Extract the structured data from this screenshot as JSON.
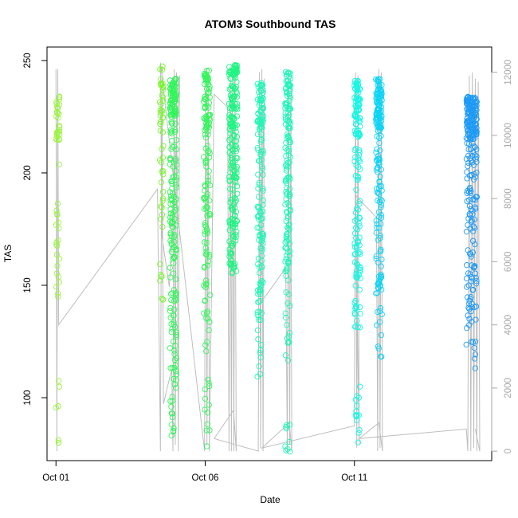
{
  "chart_data": {
    "type": "scatter",
    "title": "ATOM3 Southbound TAS",
    "xlabel": "Date",
    "ylabel": "TAS",
    "x_ticks": [
      {
        "day": 1,
        "label": "Oct 01"
      },
      {
        "day": 6,
        "label": "Oct 06"
      },
      {
        "day": 11,
        "label": "Oct 11"
      }
    ],
    "y_ticks": [
      100,
      150,
      200,
      250
    ],
    "y2_ticks": [
      0,
      2000,
      4000,
      6000,
      8000,
      10000,
      12000
    ],
    "xlim": [
      0.7,
      15.6
    ],
    "ylim": [
      72,
      256
    ],
    "y2lim": [
      -300,
      12800
    ],
    "grid": false,
    "colors": {
      "altitude_line": "#bebebe",
      "right_axis": "#a9a9a9",
      "day_colors": [
        "#9af53e",
        "#7af52f",
        "#32f55a",
        "#1ef582",
        "#22f5b7",
        "#18f5e2",
        "#0cd3f5",
        "#1e9af5"
      ]
    },
    "series": [
      {
        "color_index": 0,
        "x0": 1.0,
        "width": 0.12,
        "n": 55,
        "bands": [
          [
            214,
            235,
            0.5
          ],
          [
            140,
            205,
            0.38
          ],
          [
            78,
            118,
            0.12
          ]
        ]
      },
      {
        "color_index": 1,
        "x0": 4.48,
        "width": 0.12,
        "n": 55,
        "bands": [
          [
            218,
            248,
            0.55
          ],
          [
            175,
            215,
            0.3
          ],
          [
            140,
            160,
            0.15
          ]
        ]
      },
      {
        "color_index": 2,
        "x0": 4.82,
        "width": 0.22,
        "n": 220,
        "bands": [
          [
            225,
            242,
            0.35
          ],
          [
            150,
            225,
            0.4
          ],
          [
            100,
            150,
            0.2
          ],
          [
            83,
            100,
            0.05
          ]
        ]
      },
      {
        "color_index": 2,
        "x0": 5.95,
        "width": 0.22,
        "n": 150,
        "bands": [
          [
            220,
            247,
            0.4
          ],
          [
            160,
            220,
            0.38
          ],
          [
            120,
            160,
            0.14
          ],
          [
            77,
            120,
            0.08
          ]
        ]
      },
      {
        "color_index": 3,
        "x0": 6.8,
        "width": 0.28,
        "n": 220,
        "bands": [
          [
            220,
            248,
            0.45
          ],
          [
            155,
            220,
            0.55
          ]
        ]
      },
      {
        "color_index": 4,
        "x0": 7.75,
        "width": 0.2,
        "n": 150,
        "bands": [
          [
            220,
            240,
            0.35
          ],
          [
            130,
            220,
            0.6
          ],
          [
            100,
            130,
            0.05
          ]
        ]
      },
      {
        "color_index": 4,
        "x0": 8.68,
        "width": 0.18,
        "n": 170,
        "bands": [
          [
            215,
            245,
            0.4
          ],
          [
            155,
            215,
            0.45
          ],
          [
            105,
            155,
            0.1
          ],
          [
            75,
            90,
            0.05
          ]
        ]
      },
      {
        "color_index": 5,
        "x0": 11.0,
        "width": 0.2,
        "n": 170,
        "bands": [
          [
            215,
            241,
            0.45
          ],
          [
            130,
            215,
            0.47
          ],
          [
            80,
            105,
            0.08
          ]
        ]
      },
      {
        "color_index": 6,
        "x0": 11.72,
        "width": 0.2,
        "n": 180,
        "bands": [
          [
            218,
            242,
            0.5
          ],
          [
            145,
            218,
            0.44
          ],
          [
            118,
            140,
            0.06
          ]
        ]
      },
      {
        "color_index": 7,
        "x0": 14.75,
        "width": 0.35,
        "n": 260,
        "bands": [
          [
            215,
            234,
            0.55
          ],
          [
            130,
            215,
            0.42
          ],
          [
            100,
            130,
            0.03
          ]
        ]
      }
    ],
    "altitude_trace": [
      [
        1.0,
        12100
      ],
      [
        1.03,
        0
      ],
      [
        1.06,
        12100
      ],
      [
        1.09,
        4000
      ],
      [
        4.4,
        8300
      ],
      [
        4.5,
        0
      ],
      [
        4.55,
        12200
      ],
      [
        4.6,
        1500
      ],
      [
        4.88,
        2600
      ],
      [
        4.92,
        0
      ],
      [
        4.96,
        12100
      ],
      [
        5.0,
        200
      ],
      [
        5.04,
        12000
      ],
      [
        5.1,
        0
      ],
      [
        5.14,
        11900
      ],
      [
        4.8,
        5200
      ],
      [
        4.55,
        6800
      ],
      [
        4.5,
        12300
      ],
      [
        5.98,
        0
      ],
      [
        6.02,
        12100
      ],
      [
        6.06,
        200
      ],
      [
        6.1,
        12000
      ],
      [
        6.14,
        0
      ],
      [
        6.3,
        11300
      ],
      [
        6.75,
        10900
      ],
      [
        6.8,
        0
      ],
      [
        6.84,
        12200
      ],
      [
        6.88,
        0
      ],
      [
        6.92,
        12100
      ],
      [
        6.96,
        0
      ],
      [
        7.0,
        12200
      ],
      [
        7.04,
        0
      ],
      [
        6.95,
        1300
      ],
      [
        6.3,
        400
      ],
      [
        7.78,
        0
      ],
      [
        7.82,
        12000
      ],
      [
        7.86,
        100
      ],
      [
        7.9,
        12100
      ],
      [
        7.94,
        0
      ],
      [
        7.98,
        11800
      ],
      [
        7.86,
        4700
      ],
      [
        8.7,
        5800
      ],
      [
        8.75,
        0
      ],
      [
        8.79,
        12100
      ],
      [
        8.83,
        200
      ],
      [
        8.87,
        12000
      ],
      [
        8.9,
        0
      ],
      [
        8.82,
        900
      ],
      [
        7.9,
        100
      ],
      [
        11.0,
        800
      ],
      [
        11.04,
        12000
      ],
      [
        11.08,
        100
      ],
      [
        11.12,
        11900
      ],
      [
        11.16,
        200
      ],
      [
        11.04,
        8100
      ],
      [
        11.74,
        7400
      ],
      [
        11.78,
        0
      ],
      [
        11.82,
        12100
      ],
      [
        11.86,
        100
      ],
      [
        11.9,
        12000
      ],
      [
        11.94,
        0
      ],
      [
        11.82,
        900
      ],
      [
        11.16,
        400
      ],
      [
        14.75,
        700
      ],
      [
        14.8,
        0
      ],
      [
        14.85,
        11900
      ],
      [
        14.9,
        0
      ],
      [
        14.95,
        12000
      ],
      [
        15.0,
        100
      ],
      [
        15.05,
        11800
      ],
      [
        15.1,
        0
      ],
      [
        15.15,
        11700
      ],
      [
        15.2,
        0
      ],
      [
        15.05,
        700
      ]
    ]
  }
}
